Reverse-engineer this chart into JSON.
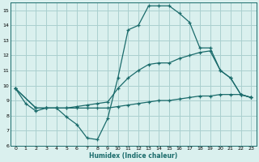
{
  "xlabel": "Humidex (Indice chaleur)",
  "bg_color": "#daf0ee",
  "grid_color": "#aacfcf",
  "line_color": "#1a6b6b",
  "xlim": [
    -0.5,
    23.5
  ],
  "ylim": [
    6,
    15.5
  ],
  "xticks": [
    0,
    1,
    2,
    3,
    4,
    5,
    6,
    7,
    8,
    9,
    10,
    11,
    12,
    13,
    14,
    15,
    16,
    17,
    18,
    19,
    20,
    21,
    22,
    23
  ],
  "yticks": [
    6,
    7,
    8,
    9,
    10,
    11,
    12,
    13,
    14,
    15
  ],
  "curve1_x": [
    0,
    1,
    2,
    3,
    4,
    5,
    6,
    7,
    8,
    9,
    10,
    11,
    12,
    13,
    14,
    15,
    16,
    17,
    18,
    19,
    20,
    21,
    22,
    23
  ],
  "curve1_y": [
    9.8,
    8.8,
    8.3,
    8.5,
    8.5,
    7.9,
    7.4,
    6.5,
    6.4,
    7.8,
    10.5,
    13.7,
    14.0,
    15.3,
    15.3,
    15.3,
    14.8,
    14.2,
    12.5,
    12.5,
    11.0,
    10.5,
    9.4,
    9.2
  ],
  "curve2_x": [
    0,
    2,
    3,
    4,
    5,
    6,
    7,
    8,
    9,
    10,
    11,
    12,
    13,
    14,
    15,
    16,
    17,
    18,
    19,
    20,
    21,
    22,
    23
  ],
  "curve2_y": [
    9.8,
    8.5,
    8.5,
    8.5,
    8.5,
    8.5,
    8.5,
    8.5,
    8.5,
    8.6,
    8.7,
    8.8,
    8.9,
    9.0,
    9.0,
    9.1,
    9.2,
    9.3,
    9.3,
    9.4,
    9.4,
    9.4,
    9.2
  ],
  "curve3_x": [
    0,
    2,
    3,
    4,
    5,
    6,
    7,
    8,
    9,
    10,
    11,
    12,
    13,
    14,
    15,
    16,
    17,
    18,
    19,
    20,
    21,
    22,
    23
  ],
  "curve3_y": [
    9.8,
    8.5,
    8.5,
    8.5,
    8.5,
    8.6,
    8.7,
    8.8,
    8.9,
    9.8,
    10.5,
    11.0,
    11.4,
    11.5,
    11.5,
    11.8,
    12.0,
    12.2,
    12.3,
    11.0,
    10.5,
    9.4,
    9.2
  ]
}
